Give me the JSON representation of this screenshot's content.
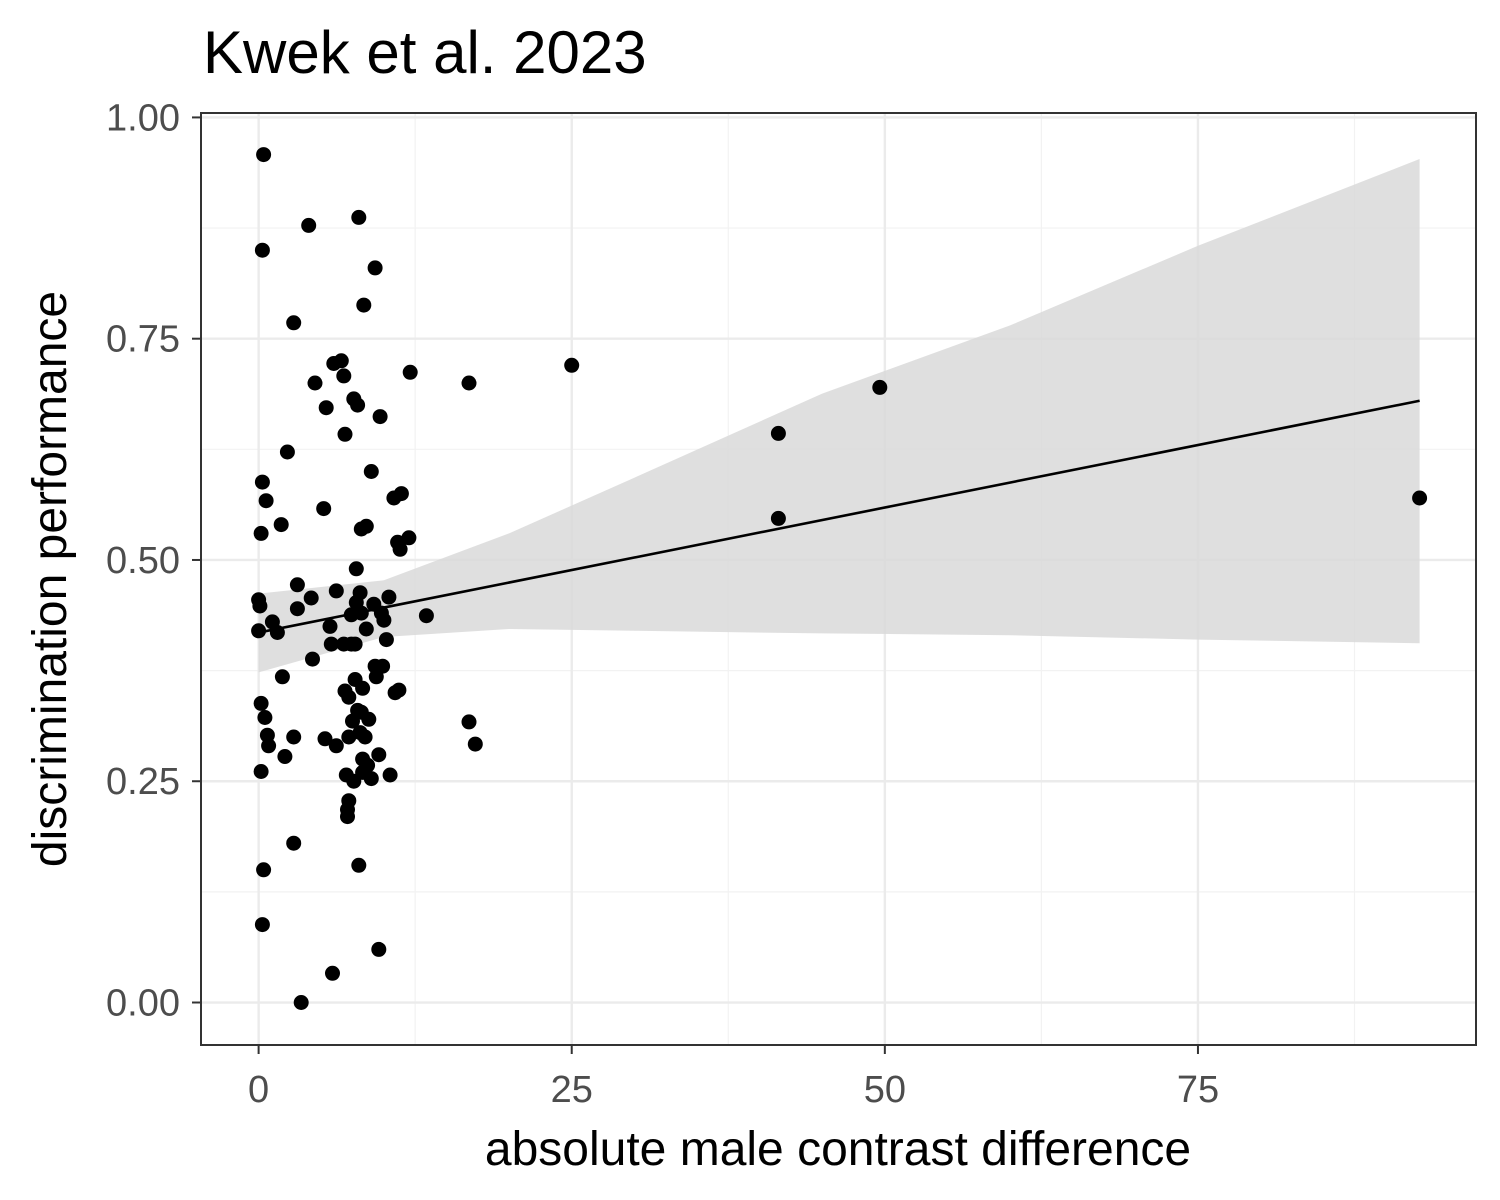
{
  "chart_data": {
    "type": "scatter",
    "title": "Kwek et al. 2023",
    "xlabel": "absolute male contrast difference",
    "ylabel": "discrimination performance",
    "xlim": [
      -4.6,
      97.2
    ],
    "ylim": [
      -0.048,
      1.005
    ],
    "x_ticks": [
      0,
      25,
      50,
      75
    ],
    "x_tick_labels": [
      "0",
      "25",
      "50",
      "75"
    ],
    "x_minor": [
      12.5,
      37.5,
      62.5,
      87.5
    ],
    "y_ticks": [
      0,
      0.25,
      0.5,
      0.75,
      1.0
    ],
    "y_tick_labels": [
      "0.00",
      "0.25",
      "0.50",
      "0.75",
      "1.00"
    ],
    "y_minor": [
      0.125,
      0.375,
      0.625,
      0.875
    ],
    "grid": true,
    "colors": {
      "points": "#000000",
      "fit_line": "#000000",
      "ribbon": "#d9d9d9"
    },
    "fit": {
      "method": "linear",
      "x_range": [
        0,
        92.7
      ],
      "intercept": 0.418,
      "slope": 0.002825,
      "ribbon": [
        {
          "x": 0,
          "lower": 0.373,
          "upper": 0.462
        },
        {
          "x": 10,
          "lower": 0.413,
          "upper": 0.477
        },
        {
          "x": 20,
          "lower": 0.422,
          "upper": 0.53
        },
        {
          "x": 30,
          "lower": 0.42,
          "upper": 0.593
        },
        {
          "x": 45,
          "lower": 0.417,
          "upper": 0.688
        },
        {
          "x": 60,
          "lower": 0.415,
          "upper": 0.765
        },
        {
          "x": 75,
          "lower": 0.41,
          "upper": 0.855
        },
        {
          "x": 92.7,
          "lower": 0.406,
          "upper": 0.953
        }
      ]
    },
    "points": [
      [
        0.4,
        0.958
      ],
      [
        0.3,
        0.85
      ],
      [
        0.3,
        0.588
      ],
      [
        0.6,
        0.567
      ],
      [
        0.2,
        0.53
      ],
      [
        0.0,
        0.455
      ],
      [
        0.1,
        0.448
      ],
      [
        0.0,
        0.42
      ],
      [
        0.2,
        0.338
      ],
      [
        0.5,
        0.322
      ],
      [
        0.7,
        0.302
      ],
      [
        0.8,
        0.29
      ],
      [
        0.2,
        0.261
      ],
      [
        0.4,
        0.15
      ],
      [
        0.3,
        0.088
      ],
      [
        1.1,
        0.43
      ],
      [
        1.5,
        0.418
      ],
      [
        1.8,
        0.54
      ],
      [
        1.9,
        0.368
      ],
      [
        2.1,
        0.278
      ],
      [
        2.3,
        0.622
      ],
      [
        2.8,
        0.768
      ],
      [
        2.8,
        0.3
      ],
      [
        2.8,
        0.18
      ],
      [
        3.1,
        0.472
      ],
      [
        3.1,
        0.445
      ],
      [
        3.4,
        0.0
      ],
      [
        4.0,
        0.878
      ],
      [
        4.2,
        0.457
      ],
      [
        4.3,
        0.388
      ],
      [
        4.5,
        0.7
      ],
      [
        5.2,
        0.558
      ],
      [
        5.3,
        0.298
      ],
      [
        5.4,
        0.672
      ],
      [
        5.7,
        0.425
      ],
      [
        5.8,
        0.405
      ],
      [
        5.9,
        0.033
      ],
      [
        6.0,
        0.722
      ],
      [
        6.2,
        0.465
      ],
      [
        6.2,
        0.29
      ],
      [
        6.6,
        0.725
      ],
      [
        6.8,
        0.708
      ],
      [
        6.8,
        0.405
      ],
      [
        6.9,
        0.642
      ],
      [
        6.9,
        0.352
      ],
      [
        7.0,
        0.257
      ],
      [
        7.1,
        0.21
      ],
      [
        7.1,
        0.218
      ],
      [
        7.2,
        0.228
      ],
      [
        7.2,
        0.345
      ],
      [
        7.2,
        0.3
      ],
      [
        7.4,
        0.438
      ],
      [
        7.4,
        0.405
      ],
      [
        7.5,
        0.318
      ],
      [
        7.6,
        0.682
      ],
      [
        7.6,
        0.25
      ],
      [
        7.7,
        0.365
      ],
      [
        7.7,
        0.405
      ],
      [
        7.8,
        0.49
      ],
      [
        7.8,
        0.452
      ],
      [
        7.9,
        0.675
      ],
      [
        7.9,
        0.33
      ],
      [
        8.0,
        0.887
      ],
      [
        8.0,
        0.155
      ],
      [
        8.1,
        0.463
      ],
      [
        8.1,
        0.305
      ],
      [
        8.2,
        0.535
      ],
      [
        8.2,
        0.44
      ],
      [
        8.2,
        0.328
      ],
      [
        8.3,
        0.355
      ],
      [
        8.3,
        0.275
      ],
      [
        8.3,
        0.26
      ],
      [
        8.4,
        0.788
      ],
      [
        8.5,
        0.3
      ],
      [
        8.6,
        0.538
      ],
      [
        8.6,
        0.422
      ],
      [
        8.7,
        0.268
      ],
      [
        8.8,
        0.32
      ],
      [
        9.0,
        0.6
      ],
      [
        9.0,
        0.253
      ],
      [
        9.2,
        0.45
      ],
      [
        9.3,
        0.83
      ],
      [
        9.3,
        0.38
      ],
      [
        9.4,
        0.368
      ],
      [
        9.6,
        0.06
      ],
      [
        9.6,
        0.28
      ],
      [
        9.7,
        0.662
      ],
      [
        9.8,
        0.44
      ],
      [
        9.9,
        0.38
      ],
      [
        10.0,
        0.432
      ],
      [
        10.2,
        0.41
      ],
      [
        10.4,
        0.458
      ],
      [
        10.5,
        0.257
      ],
      [
        10.8,
        0.57
      ],
      [
        10.9,
        0.35
      ],
      [
        11.1,
        0.52
      ],
      [
        11.2,
        0.353
      ],
      [
        11.3,
        0.512
      ],
      [
        11.4,
        0.575
      ],
      [
        12.0,
        0.525
      ],
      [
        12.1,
        0.712
      ],
      [
        13.4,
        0.437
      ],
      [
        16.8,
        0.7
      ],
      [
        16.8,
        0.317
      ],
      [
        17.3,
        0.292
      ],
      [
        25.0,
        0.72
      ],
      [
        41.5,
        0.643
      ],
      [
        41.5,
        0.547
      ],
      [
        49.6,
        0.695
      ],
      [
        92.7,
        0.57
      ]
    ]
  }
}
